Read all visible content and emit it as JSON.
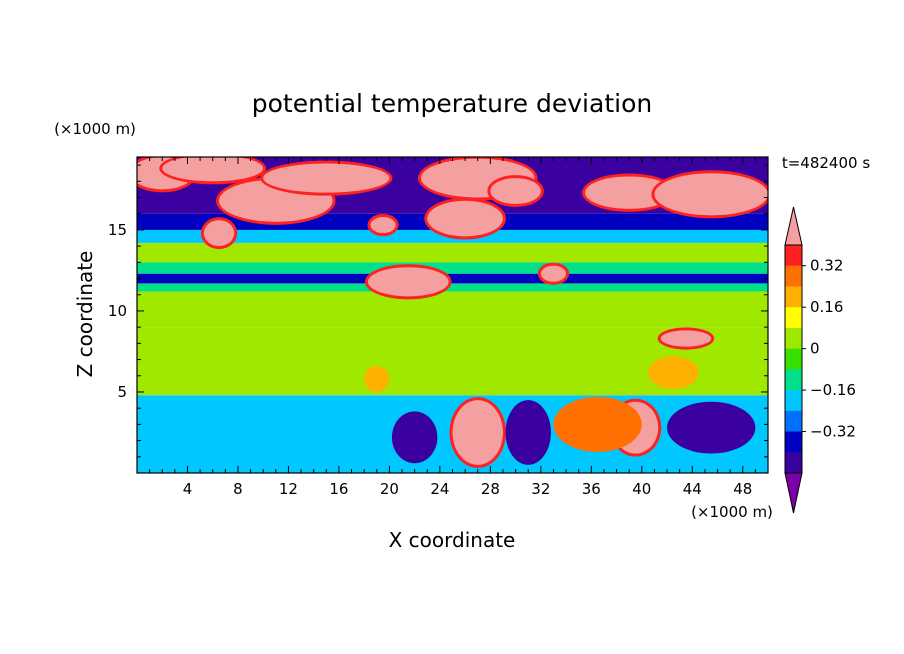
{
  "chart_data": {
    "type": "heatmap",
    "title": "potential temperature deviation",
    "time_label": "t=482400 s",
    "xlabel": "X coordinate",
    "ylabel": "Z coordinate",
    "x_unit": "(×1000 m)",
    "y_unit": "(×1000 m)",
    "xlim": [
      0,
      50
    ],
    "ylim": [
      0,
      19.5
    ],
    "x_ticks": [
      4,
      8,
      12,
      16,
      20,
      24,
      28,
      32,
      36,
      40,
      44,
      48
    ],
    "y_ticks": [
      5,
      10,
      15
    ],
    "colorbar": {
      "levels": [
        -0.48,
        -0.4,
        -0.32,
        -0.24,
        -0.16,
        -0.08,
        0,
        0.08,
        0.16,
        0.24,
        0.32,
        0.4
      ],
      "tick_labels": [
        "0.32",
        "0.16",
        "0",
        "−0.16",
        "−0.32"
      ],
      "tick_values": [
        0.32,
        0.16,
        0,
        -0.16,
        -0.32
      ],
      "colors": [
        "#7b00a8",
        "#3a00a0",
        "#0000c0",
        "#0070ff",
        "#00c8ff",
        "#00e08a",
        "#38e000",
        "#a0e800",
        "#ffff00",
        "#ffb000",
        "#ff7000",
        "#ff2020",
        "#f4a0a0"
      ],
      "extend": "both"
    },
    "horizontal_layers": [
      {
        "z_bottom": 0.0,
        "z_top": 4.8,
        "value": -0.2
      },
      {
        "z_bottom": 4.8,
        "z_top": 9.0,
        "value": 0.04
      },
      {
        "z_bottom": 9.0,
        "z_top": 11.2,
        "value": 0.02
      },
      {
        "z_bottom": 11.2,
        "z_top": 11.7,
        "value": -0.12
      },
      {
        "z_bottom": 11.7,
        "z_top": 12.3,
        "value": -0.36
      },
      {
        "z_bottom": 12.3,
        "z_top": 13.0,
        "value": -0.1
      },
      {
        "z_bottom": 13.0,
        "z_top": 14.2,
        "value": 0.02
      },
      {
        "z_bottom": 14.2,
        "z_top": 15.0,
        "value": -0.2
      },
      {
        "z_bottom": 15.0,
        "z_top": 16.0,
        "value": -0.36
      },
      {
        "z_bottom": 16.0,
        "z_top": 19.5,
        "value": -0.44
      }
    ],
    "blobs": [
      {
        "x": 2,
        "z": 18.5,
        "rx": 2.5,
        "rz": 1.0,
        "value": 0.44
      },
      {
        "x": 6,
        "z": 18.8,
        "rx": 4,
        "rz": 0.8,
        "value": 0.44
      },
      {
        "x": 11,
        "z": 16.8,
        "rx": 4.5,
        "rz": 1.3,
        "value": 0.44
      },
      {
        "x": 15,
        "z": 18.2,
        "rx": 5,
        "rz": 0.9,
        "value": 0.44
      },
      {
        "x": 6.5,
        "z": 14.8,
        "rx": 1.2,
        "rz": 0.8,
        "value": 0.44
      },
      {
        "x": 19.5,
        "z": 15.3,
        "rx": 1.0,
        "rz": 0.5,
        "value": 0.44
      },
      {
        "x": 26,
        "z": 15.7,
        "rx": 3.0,
        "rz": 1.1,
        "value": 0.44
      },
      {
        "x": 27,
        "z": 18.2,
        "rx": 4.5,
        "rz": 1.2,
        "value": 0.44
      },
      {
        "x": 30,
        "z": 17.4,
        "rx": 2.0,
        "rz": 0.8,
        "value": 0.44
      },
      {
        "x": 39,
        "z": 17.3,
        "rx": 3.5,
        "rz": 1.0,
        "value": 0.44
      },
      {
        "x": 45.5,
        "z": 17.2,
        "rx": 4.5,
        "rz": 1.3,
        "value": 0.44
      },
      {
        "x": 21.5,
        "z": 11.8,
        "rx": 3.2,
        "rz": 0.9,
        "value": 0.44
      },
      {
        "x": 33,
        "z": 12.3,
        "rx": 1.0,
        "rz": 0.5,
        "value": 0.44
      },
      {
        "x": 43.5,
        "z": 8.3,
        "rx": 2.0,
        "rz": 0.5,
        "value": 0.44
      },
      {
        "x": 27,
        "z": 2.5,
        "rx": 2.0,
        "rz": 2.0,
        "value": 0.44
      },
      {
        "x": 39.5,
        "z": 2.8,
        "rx": 1.8,
        "rz": 1.6,
        "value": 0.44
      },
      {
        "x": 36.5,
        "z": 3.0,
        "rx": 3.5,
        "rz": 1.7,
        "value": 0.3
      },
      {
        "x": 22,
        "z": 2.2,
        "rx": 1.8,
        "rz": 1.6,
        "value": -0.44
      },
      {
        "x": 31,
        "z": 2.5,
        "rx": 1.8,
        "rz": 2.0,
        "value": -0.44
      },
      {
        "x": 45.5,
        "z": 2.8,
        "rx": 3.5,
        "rz": 1.6,
        "value": -0.44
      },
      {
        "x": 42.5,
        "z": 6.2,
        "rx": 2.0,
        "rz": 1.0,
        "value": 0.18
      },
      {
        "x": 19,
        "z": 5.8,
        "rx": 1.0,
        "rz": 0.8,
        "value": 0.18
      }
    ]
  }
}
